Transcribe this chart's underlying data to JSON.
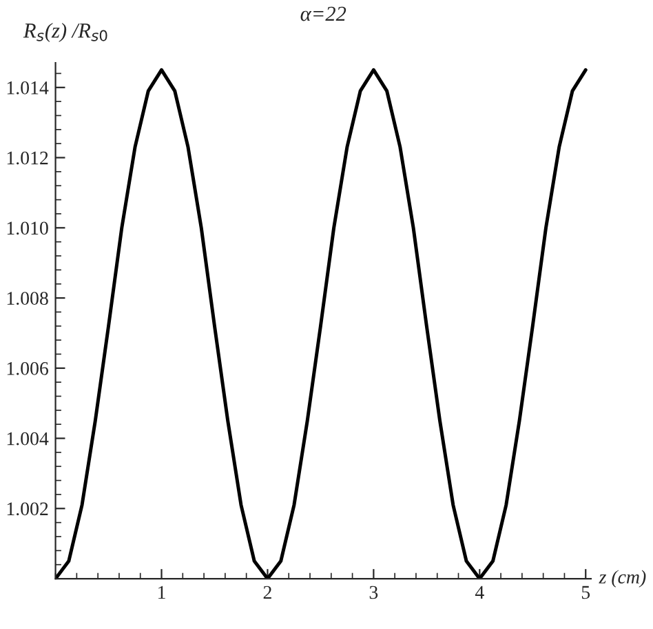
{
  "chart_data": {
    "type": "line",
    "title": "α=22",
    "xlabel": "z (cm)",
    "ylabel": "R$_{s}$(z) /R$_{s0}$",
    "x": [
      0,
      0.125,
      0.25,
      0.375,
      0.5,
      0.625,
      0.75,
      0.875,
      1,
      1.125,
      1.25,
      1.375,
      1.5,
      1.625,
      1.75,
      1.875,
      2,
      2.125,
      2.25,
      2.375,
      2.5,
      2.625,
      2.75,
      2.875,
      3,
      3.125,
      3.25,
      3.375,
      3.5,
      3.625,
      3.75,
      3.875,
      4,
      4.125,
      4.25,
      4.375,
      4.5,
      4.625,
      4.75,
      4.875,
      5
    ],
    "series": [
      {
        "color": "#000000",
        "values": [
          1.0,
          1.0005,
          1.0021,
          1.0045,
          1.0072,
          1.01,
          1.0123,
          1.0139,
          1.0145,
          1.0139,
          1.0123,
          1.01,
          1.0072,
          1.0045,
          1.0021,
          1.0005,
          1.0,
          1.0005,
          1.0021,
          1.0045,
          1.0072,
          1.01,
          1.0123,
          1.0139,
          1.0145,
          1.0139,
          1.0123,
          1.01,
          1.0072,
          1.0045,
          1.0021,
          1.0005,
          1.0,
          1.0005,
          1.0021,
          1.0045,
          1.0072,
          1.01,
          1.0123,
          1.0139,
          1.0145
        ]
      }
    ],
    "xlim": [
      0,
      5.05
    ],
    "ylim": [
      1.0,
      1.0147
    ],
    "xticks": [
      1,
      2,
      3,
      4,
      5
    ],
    "yticks": [
      {
        "value": 1.002,
        "label": "1.002"
      },
      {
        "value": 1.004,
        "label": "1.004"
      },
      {
        "value": 1.006,
        "label": "1.006"
      },
      {
        "value": 1.008,
        "label": "1.008"
      },
      {
        "value": 1.01,
        "label": "1.010"
      },
      {
        "value": 1.012,
        "label": "1.012"
      },
      {
        "value": 1.014,
        "label": "1.014"
      }
    ],
    "grid": false,
    "legend": false,
    "marker": "none",
    "line_style": "solid"
  }
}
